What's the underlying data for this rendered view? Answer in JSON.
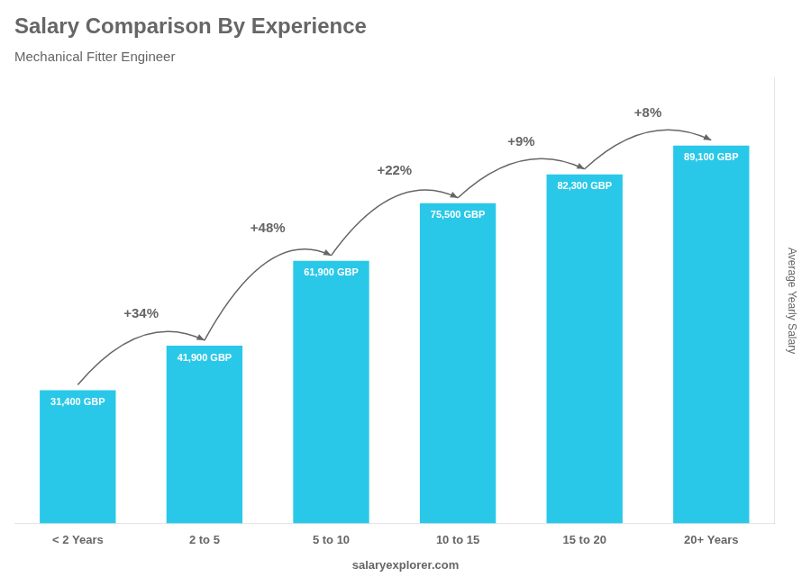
{
  "chart_data": {
    "type": "bar",
    "title": "Salary Comparison By Experience",
    "subtitle": "Mechanical Fitter Engineer",
    "categories": [
      "< 2 Years",
      "2 to 5",
      "5 to 10",
      "10 to 15",
      "15 to 20",
      "20+ Years"
    ],
    "values": [
      31400,
      41900,
      61900,
      75500,
      82300,
      89100
    ],
    "value_labels": [
      "31,400 GBP",
      "41,900 GBP",
      "61,900 GBP",
      "75,500 GBP",
      "82,300 GBP",
      "89,100 GBP"
    ],
    "data_labels": true,
    "color": "#29c8e8",
    "ylabel": "Average Yearly Salary",
    "ylim": [
      0,
      105000
    ],
    "tick_labels": "x",
    "grid": false,
    "annotations": [
      "+34%",
      "+48%",
      "+22%",
      "+9%",
      "+8%"
    ],
    "footer": "salaryexplorer.com"
  }
}
